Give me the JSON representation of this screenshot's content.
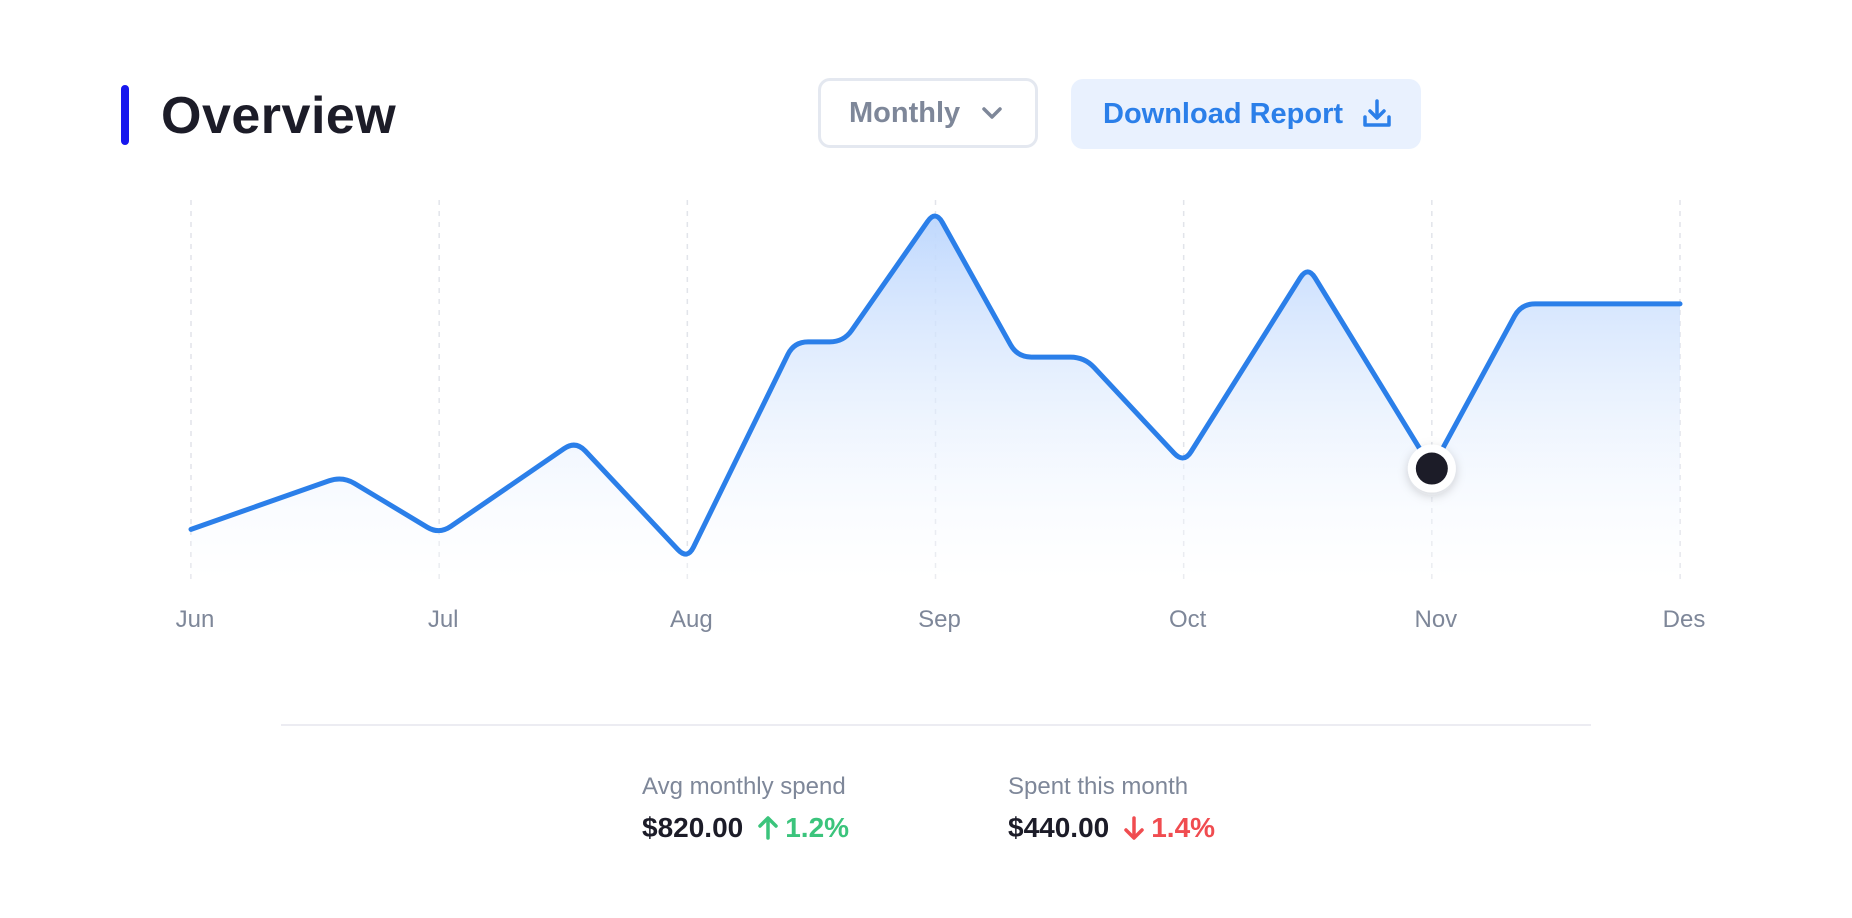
{
  "header": {
    "title": "Overview",
    "accent_color": "#1717ee",
    "period_select": {
      "value": "Monthly",
      "icon": "chevron-down-icon"
    },
    "download_button": {
      "label": "Download Report",
      "icon": "download-icon",
      "color": "#2b7fe9"
    }
  },
  "chart_data": {
    "type": "area",
    "title": "",
    "xlabel": "",
    "ylabel": "",
    "categories": [
      "Jun",
      "Jul",
      "Aug",
      "Sep",
      "Oct",
      "Nov",
      "Des"
    ],
    "x": [
      0,
      0.61,
      1,
      1.55,
      2,
      2.43,
      2.63,
      3,
      3.33,
      3.6,
      4,
      4.5,
      5,
      5.36,
      6
    ],
    "y": [
      20,
      41,
      18,
      55,
      8,
      94,
      94,
      146,
      88,
      88,
      46,
      124,
      44,
      109,
      109
    ],
    "ylim": [
      0,
      150
    ],
    "grid": "vertical-dashed",
    "legend": "none",
    "line_color": "#2b7fe9",
    "highlight_index": 12
  },
  "stats": [
    {
      "label": "Avg monthly spend",
      "value": "$820.00",
      "trend": "up",
      "trend_icon": "arrow-up-icon",
      "change": "1.2%",
      "color": "#3bc47c"
    },
    {
      "label": "Spent this month",
      "value": "$440.00",
      "trend": "down",
      "trend_icon": "arrow-down-icon",
      "change": "1.4%",
      "color": "#f04c50"
    }
  ]
}
